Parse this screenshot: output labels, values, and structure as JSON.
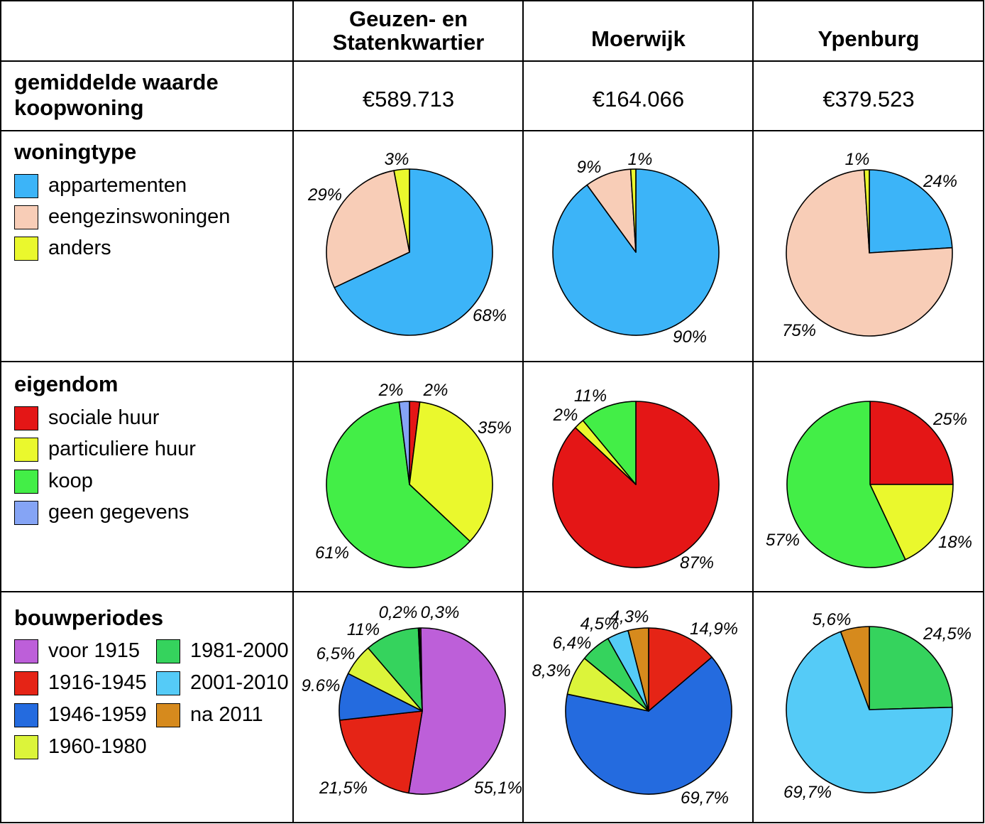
{
  "header": {
    "empty": "",
    "columns": [
      "Geuzen- en\nStatenkwartier",
      "Moerwijk",
      "Ypenburg"
    ]
  },
  "rows": {
    "value": {
      "label": "gemiddelde waarde\nkoopwoning",
      "values": [
        "€589.713",
        "€164.066",
        "€379.523"
      ]
    },
    "woningtype": {
      "label": "woningtype",
      "legend": [
        {
          "name": "appartementen",
          "color": "#3cb4f8"
        },
        {
          "name": "eengezinswoningen",
          "color": "#f8cdb7"
        },
        {
          "name": "anders",
          "color": "#eaf82d"
        }
      ]
    },
    "eigendom": {
      "label": "eigendom",
      "legend": [
        {
          "name": "sociale huur",
          "color": "#e41616"
        },
        {
          "name": "particuliere huur",
          "color": "#eaf82d"
        },
        {
          "name": "koop",
          "color": "#43ee47"
        },
        {
          "name": "geen gegevens",
          "color": "#85a4f5"
        }
      ]
    },
    "bouwperiodes": {
      "label": "bouwperiodes",
      "legend": [
        {
          "name": "voor 1915",
          "color": "#bd5fd9"
        },
        {
          "name": "1916-1945",
          "color": "#e52416"
        },
        {
          "name": "1946-1959",
          "color": "#246bdf"
        },
        {
          "name": "1960-1980",
          "color": "#dcf43a"
        },
        {
          "name": "1981-2000",
          "color": "#35d35d"
        },
        {
          "name": "2001-2010",
          "color": "#55cbf7"
        },
        {
          "name": "na 2011",
          "color": "#d68a1d"
        }
      ]
    }
  },
  "chart_data": [
    {
      "type": "pie",
      "title": "woningtype - Geuzen- en Statenkwartier",
      "slices": [
        {
          "category": "appartementen",
          "value": 68,
          "label": "68%",
          "color": "#3cb4f8"
        },
        {
          "category": "eengezinswoningen",
          "value": 29,
          "label": "29%",
          "color": "#f8cdb7"
        },
        {
          "category": "anders",
          "value": 3,
          "label": "3%",
          "color": "#eaf82d"
        }
      ]
    },
    {
      "type": "pie",
      "title": "woningtype - Moerwijk",
      "slices": [
        {
          "category": "appartementen",
          "value": 90,
          "label": "90%",
          "color": "#3cb4f8"
        },
        {
          "category": "eengezinswoningen",
          "value": 9,
          "label": "9%",
          "color": "#f8cdb7"
        },
        {
          "category": "anders",
          "value": 1,
          "label": "1%",
          "color": "#eaf82d"
        }
      ]
    },
    {
      "type": "pie",
      "title": "woningtype - Ypenburg",
      "slices": [
        {
          "category": "appartementen",
          "value": 24,
          "label": "24%",
          "color": "#3cb4f8"
        },
        {
          "category": "eengezinswoningen",
          "value": 75,
          "label": "75%",
          "color": "#f8cdb7"
        },
        {
          "category": "anders",
          "value": 1,
          "label": "1%",
          "color": "#eaf82d"
        }
      ]
    },
    {
      "type": "pie",
      "title": "eigendom - Geuzen- en Statenkwartier",
      "slices": [
        {
          "category": "sociale huur",
          "value": 2,
          "label": "2%",
          "color": "#e41616"
        },
        {
          "category": "particuliere huur",
          "value": 35,
          "label": "35%",
          "color": "#eaf82d"
        },
        {
          "category": "koop",
          "value": 61,
          "label": "61%",
          "color": "#43ee47"
        },
        {
          "category": "geen gegevens",
          "value": 2,
          "label": "2%",
          "color": "#85a4f5"
        }
      ]
    },
    {
      "type": "pie",
      "title": "eigendom - Moerwijk",
      "slices": [
        {
          "category": "sociale huur",
          "value": 87,
          "label": "87%",
          "color": "#e41616"
        },
        {
          "category": "particuliere huur",
          "value": 2,
          "label": "2%",
          "color": "#eaf82d"
        },
        {
          "category": "koop",
          "value": 11,
          "label": "11%",
          "color": "#43ee47"
        }
      ]
    },
    {
      "type": "pie",
      "title": "eigendom - Ypenburg",
      "slices": [
        {
          "category": "sociale huur",
          "value": 25,
          "label": "25%",
          "color": "#e41616"
        },
        {
          "category": "particuliere huur",
          "value": 18,
          "label": "18%",
          "color": "#eaf82d"
        },
        {
          "category": "koop",
          "value": 57,
          "label": "57%",
          "color": "#43ee47"
        }
      ]
    },
    {
      "type": "pie",
      "title": "bouwperiodes - Geuzen- en Statenkwartier",
      "slices": [
        {
          "category": "na 2011",
          "value": 0.3,
          "label": "0,3%",
          "color": "#d68a1d"
        },
        {
          "category": "voor 1915",
          "value": 55.1,
          "label": "55,1%",
          "color": "#bd5fd9"
        },
        {
          "category": "1916-1945",
          "value": 21.5,
          "label": "21,5%",
          "color": "#e52416"
        },
        {
          "category": "1946-1959",
          "value": 9.6,
          "label": "9.6%",
          "color": "#246bdf"
        },
        {
          "category": "1960-1980",
          "value": 6.5,
          "label": "6,5%",
          "color": "#dcf43a"
        },
        {
          "category": "1981-2000",
          "value": 11,
          "label": "11%",
          "color": "#35d35d"
        },
        {
          "category": "2001-2010",
          "value": 0.2,
          "label": "0,2%",
          "color": "#55cbf7"
        }
      ]
    },
    {
      "type": "pie",
      "title": "bouwperiodes - Moerwijk",
      "slices": [
        {
          "category": "1916-1945",
          "value": 14.9,
          "label": "14,9%",
          "color": "#e52416"
        },
        {
          "category": "1946-1959",
          "value": 69.7,
          "label": "69,7%",
          "color": "#246bdf"
        },
        {
          "category": "1960-1980",
          "value": 8.3,
          "label": "8,3%",
          "color": "#dcf43a"
        },
        {
          "category": "1981-2000",
          "value": 6.4,
          "label": "6,4%",
          "color": "#35d35d"
        },
        {
          "category": "2001-2010",
          "value": 4.5,
          "label": "4,5%",
          "color": "#55cbf7"
        },
        {
          "category": "na 2011",
          "value": 4.3,
          "label": "4,3%",
          "color": "#d68a1d"
        }
      ]
    },
    {
      "type": "pie",
      "title": "bouwperiodes - Ypenburg",
      "slices": [
        {
          "category": "1981-2000",
          "value": 24.5,
          "label": "24,5%",
          "color": "#35d35d"
        },
        {
          "category": "2001-2010",
          "value": 69.7,
          "label": "69,7%",
          "color": "#55cbf7"
        },
        {
          "category": "na 2011",
          "value": 5.6,
          "label": "5,6%",
          "color": "#d68a1d"
        }
      ]
    }
  ]
}
